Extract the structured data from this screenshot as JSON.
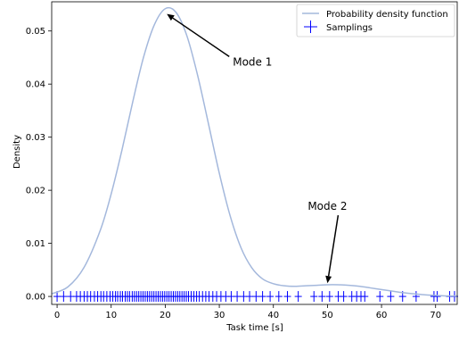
{
  "chart_data": {
    "type": "line",
    "xlabel": "Task time [s]",
    "ylabel": "Density",
    "xlim": [
      -1,
      74
    ],
    "ylim": [
      -0.0015,
      0.0555
    ],
    "xticks": [
      0,
      10,
      20,
      30,
      40,
      50,
      60,
      70
    ],
    "yticks": [
      0.0,
      0.01,
      0.02,
      0.03,
      0.04,
      0.05
    ],
    "ytick_labels": [
      "0.00",
      "0.01",
      "0.02",
      "0.03",
      "0.04",
      "0.05"
    ],
    "grid": false,
    "legend_placement": "top-right",
    "series": [
      {
        "name": "Probability density function",
        "kind": "line",
        "color": "#a4b8dc",
        "x": [
          -1,
          2,
          5,
          8,
          10,
          12,
          14,
          16,
          18,
          20,
          22,
          24,
          26,
          28,
          30,
          32,
          34,
          36,
          38,
          40,
          42,
          44,
          46,
          48,
          50,
          52,
          54,
          56,
          58,
          60,
          62,
          64,
          66,
          68,
          70,
          72,
          74
        ],
        "y": [
          0.0005,
          0.0018,
          0.0055,
          0.0125,
          0.0193,
          0.0276,
          0.0367,
          0.0451,
          0.0512,
          0.0542,
          0.0535,
          0.0491,
          0.0416,
          0.0325,
          0.0232,
          0.0152,
          0.0092,
          0.0054,
          0.0033,
          0.0024,
          0.002,
          0.0019,
          0.002,
          0.0021,
          0.0022,
          0.0022,
          0.0021,
          0.0019,
          0.0016,
          0.0013,
          0.001,
          0.0007,
          0.0005,
          0.0003,
          0.0002,
          0.0001,
          0.0001
        ]
      },
      {
        "name": "Samplings",
        "kind": "rug",
        "color": "#0000ff",
        "x": [
          0.0,
          1.2,
          2.5,
          3.6,
          4.3,
          5.0,
          5.6,
          6.2,
          6.9,
          7.5,
          8.1,
          8.6,
          9.2,
          9.8,
          10.3,
          10.8,
          11.2,
          11.7,
          12.1,
          12.6,
          13.0,
          13.4,
          13.9,
          14.3,
          14.7,
          15.1,
          15.5,
          15.9,
          16.3,
          16.7,
          17.1,
          17.5,
          17.9,
          18.3,
          18.7,
          19.1,
          19.5,
          19.9,
          20.3,
          20.7,
          21.1,
          21.5,
          21.9,
          22.3,
          22.7,
          23.1,
          23.5,
          23.9,
          24.3,
          24.8,
          25.3,
          25.8,
          26.3,
          26.9,
          27.5,
          28.1,
          28.8,
          29.5,
          30.3,
          31.2,
          32.2,
          33.3,
          34.5,
          35.6,
          36.8,
          38.0,
          39.4,
          41.0,
          42.6,
          44.6,
          47.5,
          49.0,
          50.4,
          52.0,
          53.0,
          54.5,
          55.4,
          56.2,
          56.9,
          59.7,
          61.7,
          63.9,
          66.4,
          69.7,
          70.3,
          72.6,
          73.5
        ]
      }
    ],
    "annotations": [
      {
        "text": "Mode 1",
        "target": [
          20.3,
          0.0532
        ],
        "text_at": [
          32.5,
          0.0435
        ]
      },
      {
        "text": "Mode 2",
        "target": [
          50.0,
          0.0025
        ],
        "text_at": [
          50.0,
          0.0163
        ]
      }
    ]
  }
}
